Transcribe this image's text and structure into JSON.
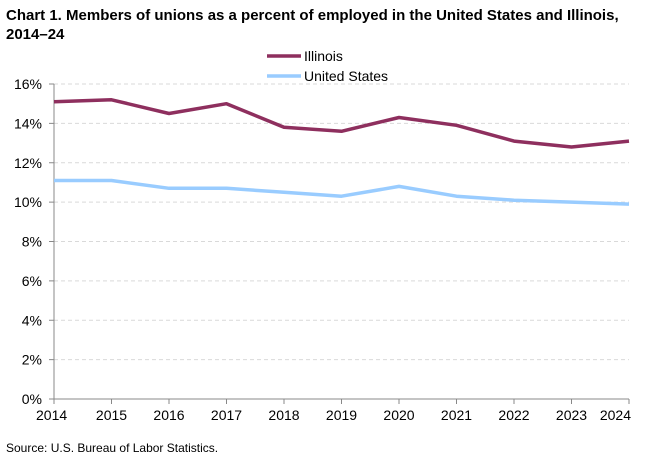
{
  "chart_data": {
    "type": "line",
    "title": "Chart 1. Members of unions as a percent of employed  in the United States and Illinois,  2014–24",
    "xlabel": "",
    "ylabel": "",
    "x": [
      2014,
      2015,
      2016,
      2017,
      2018,
      2019,
      2020,
      2021,
      2022,
      2023,
      2024
    ],
    "x_tick_labels": [
      "2014",
      "2015",
      "2016",
      "2017",
      "2018",
      "2019",
      "2020",
      "2021",
      "2022",
      "2023",
      "2024"
    ],
    "ylim": [
      0,
      16
    ],
    "y_ticks": [
      0,
      2,
      4,
      6,
      8,
      10,
      12,
      14,
      16
    ],
    "y_tick_labels": [
      "0%",
      "2%",
      "4%",
      "6%",
      "8%",
      "10%",
      "12%",
      "14%",
      "16%"
    ],
    "grid": "horizontal dashed",
    "legend_position": "top-center",
    "series": [
      {
        "name": "Illinois",
        "color": "#8E2F5E",
        "values": [
          15.1,
          15.2,
          14.5,
          15.0,
          13.8,
          13.6,
          14.3,
          13.9,
          13.1,
          12.8,
          13.1
        ]
      },
      {
        "name": "United States",
        "color": "#99CCFF",
        "values": [
          11.1,
          11.1,
          10.7,
          10.7,
          10.5,
          10.3,
          10.8,
          10.3,
          10.1,
          10.0,
          9.9
        ]
      }
    ],
    "source": "Source:  U.S. Bureau  of Labor Statistics."
  }
}
